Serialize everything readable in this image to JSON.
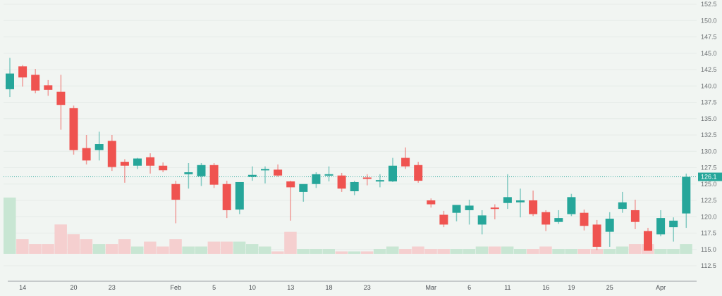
{
  "chart_data": {
    "type": "candlestick",
    "title": "",
    "xlabel": "",
    "ylabel": "",
    "ylim": [
      112.5,
      152.5
    ],
    "y_ticks": [
      112.5,
      115.0,
      117.5,
      120.0,
      122.5,
      125.0,
      127.5,
      130.0,
      132.5,
      135.0,
      137.5,
      140.0,
      142.5,
      145.0,
      147.5,
      150.0,
      152.5
    ],
    "y_tick_labels": [
      "112.5",
      "115.0",
      "117.5",
      "120.0",
      "122.5",
      "125.0",
      "127.5",
      "130.0",
      "132.5",
      "135.0",
      "137.5",
      "140.0",
      "142.5",
      "145.0",
      "147.5",
      "150.0",
      "152.5"
    ],
    "x_tick_labels": [
      {
        "label": "14",
        "index": 1
      },
      {
        "label": "20",
        "index": 5
      },
      {
        "label": "23",
        "index": 8
      },
      {
        "label": "Feb",
        "index": 13
      },
      {
        "label": "5",
        "index": 16
      },
      {
        "label": "10",
        "index": 19
      },
      {
        "label": "13",
        "index": 22
      },
      {
        "label": "18",
        "index": 25
      },
      {
        "label": "23",
        "index": 28
      },
      {
        "label": "Mar",
        "index": 33
      },
      {
        "label": "6",
        "index": 36
      },
      {
        "label": "11",
        "index": 39
      },
      {
        "label": "16",
        "index": 42
      },
      {
        "label": "19",
        "index": 44
      },
      {
        "label": "25",
        "index": 47
      },
      {
        "label": "Apr",
        "index": 51
      }
    ],
    "last_price": 126.1,
    "last_price_label": "126.1",
    "grid": true,
    "legend": "none",
    "colors": {
      "up": "#26a69a",
      "down": "#ef5350",
      "volume_up": "#c8e6d3",
      "volume_down": "#f5cfcf",
      "background": "#f1f5f2",
      "grid": "#e6ebe8",
      "axis_text": "#6b6f72",
      "last_price_line": "#26a69a"
    },
    "candles": [
      {
        "o": 139.5,
        "h": 144.3,
        "l": 138.3,
        "c": 141.9,
        "v": 23
      },
      {
        "o": 143.0,
        "h": 143.2,
        "l": 139.9,
        "c": 141.3,
        "v": 6
      },
      {
        "o": 141.7,
        "h": 142.6,
        "l": 138.9,
        "c": 139.3,
        "v": 4
      },
      {
        "o": 140.1,
        "h": 140.9,
        "l": 138.5,
        "c": 139.4,
        "v": 4
      },
      {
        "o": 139.1,
        "h": 141.7,
        "l": 133.3,
        "c": 137.1,
        "v": 12
      },
      {
        "o": 136.6,
        "h": 137.0,
        "l": 129.5,
        "c": 130.2,
        "v": 8
      },
      {
        "o": 130.5,
        "h": 132.5,
        "l": 128.0,
        "c": 128.6,
        "v": 6
      },
      {
        "o": 130.2,
        "h": 133.0,
        "l": 128.6,
        "c": 131.1,
        "v": 4
      },
      {
        "o": 131.6,
        "h": 132.5,
        "l": 127.0,
        "c": 127.6,
        "v": 4
      },
      {
        "o": 128.4,
        "h": 128.8,
        "l": 125.2,
        "c": 127.8,
        "v": 6
      },
      {
        "o": 127.8,
        "h": 129.0,
        "l": 127.3,
        "c": 128.9,
        "v": 3
      },
      {
        "o": 129.1,
        "h": 129.7,
        "l": 126.6,
        "c": 127.8,
        "v": 5
      },
      {
        "o": 127.8,
        "h": 128.3,
        "l": 126.8,
        "c": 127.1,
        "v": 3
      },
      {
        "o": 125.0,
        "h": 125.5,
        "l": 119.0,
        "c": 122.6,
        "v": 6
      },
      {
        "o": 126.5,
        "h": 128.2,
        "l": 124.3,
        "c": 126.8,
        "v": 3
      },
      {
        "o": 126.2,
        "h": 128.2,
        "l": 124.7,
        "c": 127.9,
        "v": 3
      },
      {
        "o": 127.9,
        "h": 128.2,
        "l": 124.4,
        "c": 124.9,
        "v": 5
      },
      {
        "o": 125.0,
        "h": 125.5,
        "l": 119.8,
        "c": 121.0,
        "v": 5
      },
      {
        "o": 121.1,
        "h": 125.2,
        "l": 120.4,
        "c": 125.3,
        "v": 5
      },
      {
        "o": 126.1,
        "h": 127.7,
        "l": 125.5,
        "c": 126.4,
        "v": 4
      },
      {
        "o": 127.1,
        "h": 127.7,
        "l": 125.1,
        "c": 127.3,
        "v": 3
      },
      {
        "o": 127.2,
        "h": 128.0,
        "l": 126.1,
        "c": 126.3,
        "v": 1
      },
      {
        "o": 125.4,
        "h": 125.5,
        "l": 119.4,
        "c": 124.5,
        "v": 9
      },
      {
        "o": 123.8,
        "h": 124.9,
        "l": 122.3,
        "c": 125.0,
        "v": 2
      },
      {
        "o": 125.0,
        "h": 126.8,
        "l": 124.4,
        "c": 126.5,
        "v": 2
      },
      {
        "o": 126.5,
        "h": 127.7,
        "l": 125.4,
        "c": 126.5,
        "v": 2
      },
      {
        "o": 126.3,
        "h": 126.7,
        "l": 123.8,
        "c": 124.3,
        "v": 1
      },
      {
        "o": 123.9,
        "h": 125.5,
        "l": 123.3,
        "c": 125.3,
        "v": 1
      },
      {
        "o": 126.0,
        "h": 126.5,
        "l": 124.8,
        "c": 125.8,
        "v": 1
      },
      {
        "o": 125.5,
        "h": 126.5,
        "l": 124.5,
        "c": 125.6,
        "v": 2
      },
      {
        "o": 125.4,
        "h": 129.0,
        "l": 125.3,
        "c": 127.8,
        "v": 3
      },
      {
        "o": 129.0,
        "h": 130.6,
        "l": 127.3,
        "c": 127.7,
        "v": 2
      },
      {
        "o": 127.9,
        "h": 128.4,
        "l": 125.2,
        "c": 125.5,
        "v": 3
      },
      {
        "o": 122.5,
        "h": 122.8,
        "l": 121.4,
        "c": 121.9,
        "v": 2
      },
      {
        "o": 120.3,
        "h": 120.9,
        "l": 118.4,
        "c": 118.8,
        "v": 2
      },
      {
        "o": 120.6,
        "h": 121.8,
        "l": 119.3,
        "c": 121.8,
        "v": 2
      },
      {
        "o": 121.0,
        "h": 122.6,
        "l": 118.8,
        "c": 121.7,
        "v": 2
      },
      {
        "o": 118.8,
        "h": 121.0,
        "l": 117.3,
        "c": 120.2,
        "v": 3
      },
      {
        "o": 121.4,
        "h": 121.9,
        "l": 119.6,
        "c": 121.2,
        "v": 3
      },
      {
        "o": 122.1,
        "h": 126.5,
        "l": 121.2,
        "c": 123.0,
        "v": 3
      },
      {
        "o": 122.2,
        "h": 124.3,
        "l": 119.9,
        "c": 122.5,
        "v": 2
      },
      {
        "o": 122.5,
        "h": 124.0,
        "l": 120.1,
        "c": 120.4,
        "v": 2
      },
      {
        "o": 120.7,
        "h": 121.0,
        "l": 117.8,
        "c": 118.8,
        "v": 3
      },
      {
        "o": 119.2,
        "h": 121.0,
        "l": 118.9,
        "c": 119.8,
        "v": 2
      },
      {
        "o": 120.4,
        "h": 123.5,
        "l": 120.1,
        "c": 123.0,
        "v": 2
      },
      {
        "o": 120.6,
        "h": 121.1,
        "l": 117.9,
        "c": 118.6,
        "v": 2
      },
      {
        "o": 118.8,
        "h": 119.5,
        "l": 114.9,
        "c": 115.4,
        "v": 2
      },
      {
        "o": 117.7,
        "h": 120.7,
        "l": 115.4,
        "c": 119.7,
        "v": 2
      },
      {
        "o": 121.2,
        "h": 123.8,
        "l": 120.6,
        "c": 122.2,
        "v": 3
      },
      {
        "o": 121.0,
        "h": 122.6,
        "l": 118.1,
        "c": 119.2,
        "v": 4
      },
      {
        "o": 117.8,
        "h": 118.3,
        "l": 114.9,
        "c": 114.8,
        "v": 4
      },
      {
        "o": 117.3,
        "h": 121.0,
        "l": 117.0,
        "c": 119.8,
        "v": 2
      },
      {
        "o": 118.4,
        "h": 119.9,
        "l": 116.2,
        "c": 119.4,
        "v": 2
      },
      {
        "o": 120.5,
        "h": 126.6,
        "l": 118.3,
        "c": 126.1,
        "v": 4
      }
    ]
  }
}
